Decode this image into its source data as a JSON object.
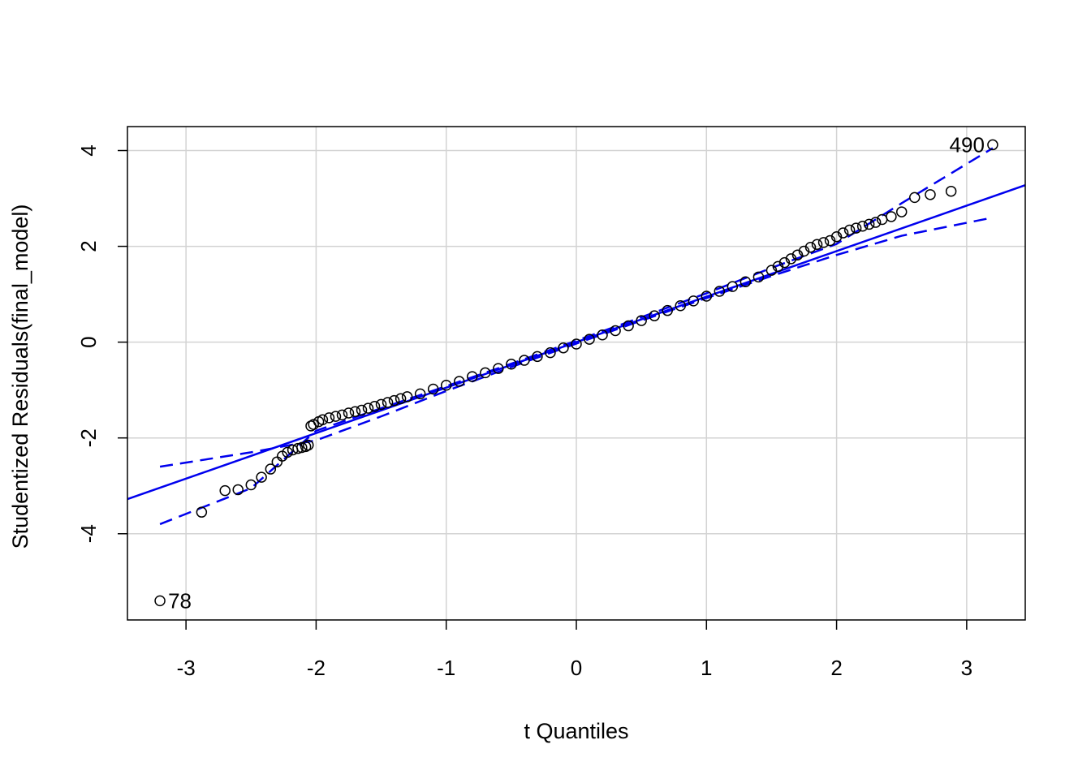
{
  "chart_data": {
    "type": "scatter",
    "title": "",
    "xlabel": "t Quantiles",
    "ylabel": "Studentized Residuals(final_model)",
    "xlim": [
      -3.45,
      3.45
    ],
    "ylim": [
      -5.8,
      4.5
    ],
    "xticks": [
      -3,
      -2,
      -1,
      0,
      1,
      2,
      3
    ],
    "yticks": [
      -4,
      -2,
      0,
      2,
      4
    ],
    "grid": true,
    "colors": {
      "points": "#000000",
      "lines": "#0000ee",
      "grid": "#d3d3d3"
    },
    "reference_line": {
      "slope": 0.95,
      "intercept": 0.0,
      "x_range": [
        -3.45,
        3.45
      ]
    },
    "envelope_lower": {
      "x": [
        -3.2,
        -2.5,
        -2.0,
        -1.5,
        -1.0,
        -0.5,
        0.0,
        0.5,
        1.0,
        1.5,
        2.0,
        2.5,
        3.2
      ],
      "y": [
        -2.6,
        -2.3,
        -2.05,
        -1.55,
        -1.02,
        -0.52,
        -0.03,
        0.45,
        0.92,
        1.38,
        1.82,
        2.22,
        2.6
      ]
    },
    "envelope_upper": {
      "x": [
        -3.2,
        -2.5,
        -2.0,
        -1.5,
        -1.0,
        -0.5,
        0.0,
        0.5,
        1.0,
        1.5,
        2.0,
        2.5,
        3.2
      ],
      "y": [
        -3.8,
        -3.05,
        -1.85,
        -1.38,
        -0.92,
        -0.45,
        0.03,
        0.52,
        1.02,
        1.55,
        2.05,
        2.9,
        4.05
      ]
    },
    "labels": [
      {
        "text": "490",
        "x": 3.2,
        "y": 4.12
      },
      {
        "text": "78",
        "x": -3.2,
        "y": -5.4
      }
    ],
    "points": {
      "x": [
        -3.2,
        -2.88,
        -2.7,
        -2.6,
        -2.5,
        -2.42,
        -2.35,
        -2.3,
        -2.26,
        -2.22,
        -2.18,
        -2.14,
        -2.11,
        -2.08,
        -2.06,
        -2.04,
        -2.02,
        -1.98,
        -1.95,
        -1.9,
        -1.85,
        -1.8,
        -1.75,
        -1.7,
        -1.65,
        -1.6,
        -1.55,
        -1.5,
        -1.45,
        -1.4,
        -1.35,
        -1.3,
        -1.2,
        -1.1,
        -1.0,
        -0.9,
        -0.8,
        -0.7,
        -0.6,
        -0.5,
        -0.4,
        -0.3,
        -0.2,
        -0.1,
        0.0,
        0.1,
        0.2,
        0.3,
        0.4,
        0.5,
        0.6,
        0.7,
        0.8,
        0.9,
        1.0,
        1.1,
        1.2,
        1.3,
        1.4,
        1.5,
        1.55,
        1.6,
        1.65,
        1.7,
        1.75,
        1.8,
        1.85,
        1.9,
        1.95,
        2.0,
        2.05,
        2.1,
        2.15,
        2.2,
        2.25,
        2.3,
        2.35,
        2.42,
        2.5,
        2.6,
        2.72,
        2.88,
        3.2
      ],
      "y": [
        -5.4,
        -3.55,
        -3.1,
        -3.08,
        -2.98,
        -2.82,
        -2.65,
        -2.5,
        -2.38,
        -2.3,
        -2.25,
        -2.22,
        -2.2,
        -2.18,
        -2.15,
        -1.75,
        -1.72,
        -1.66,
        -1.62,
        -1.58,
        -1.55,
        -1.52,
        -1.48,
        -1.45,
        -1.42,
        -1.38,
        -1.34,
        -1.3,
        -1.26,
        -1.22,
        -1.18,
        -1.14,
        -1.08,
        -0.98,
        -0.9,
        -0.82,
        -0.72,
        -0.64,
        -0.55,
        -0.46,
        -0.38,
        -0.3,
        -0.22,
        -0.12,
        -0.04,
        0.06,
        0.15,
        0.24,
        0.34,
        0.45,
        0.55,
        0.66,
        0.76,
        0.86,
        0.96,
        1.06,
        1.16,
        1.26,
        1.36,
        1.5,
        1.58,
        1.66,
        1.74,
        1.82,
        1.9,
        1.98,
        2.04,
        2.08,
        2.12,
        2.2,
        2.28,
        2.34,
        2.38,
        2.42,
        2.46,
        2.5,
        2.56,
        2.62,
        2.72,
        3.02,
        3.08,
        3.15,
        4.12
      ]
    }
  }
}
